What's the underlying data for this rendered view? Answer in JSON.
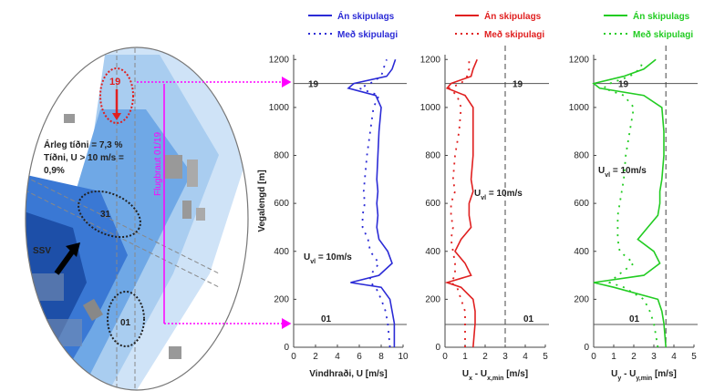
{
  "map": {
    "labels": {
      "runway_end_north": "19",
      "freq1": "Árleg tíðni = 7,3 %",
      "freq2": "Tíðni, U > 10 m/s =",
      "freq3": "0,9%",
      "runway_31": "31",
      "runway_name": "Flugbraut 01/19",
      "wind_dir": "SSV",
      "runway_end_south": "01"
    }
  },
  "chart_data": [
    {
      "type": "line",
      "distance": [
        0,
        100,
        150,
        200,
        250,
        270,
        300,
        350,
        400,
        450,
        500,
        550,
        600,
        650,
        700,
        800,
        900,
        1000,
        1050,
        1080,
        1100,
        1130,
        1160,
        1200
      ],
      "series": [
        {
          "name": "Án skipulags",
          "color": "#2b2bd6",
          "style": "solid",
          "values": [
            9.2,
            9.2,
            9.0,
            8.8,
            8.0,
            5.2,
            7.8,
            9.0,
            8.6,
            7.8,
            7.6,
            7.7,
            7.6,
            7.7,
            7.6,
            7.7,
            7.8,
            8.0,
            7.5,
            5.0,
            5.5,
            8.5,
            9.0,
            9.3
          ]
        },
        {
          "name": "Með skipulagi",
          "color": "#2b2bd6",
          "style": "dotted",
          "values": [
            8.8,
            8.6,
            8.4,
            8.0,
            7.5,
            7.0,
            7.0,
            7.8,
            7.0,
            6.8,
            6.3,
            6.3,
            6.5,
            6.4,
            6.5,
            6.7,
            7.0,
            7.3,
            7.8,
            6.0,
            7.0,
            8.0,
            8.2,
            8.5
          ]
        }
      ],
      "xlim": [
        0,
        10
      ],
      "xticks": [
        0,
        2,
        4,
        6,
        8,
        10
      ],
      "ylim": [
        0,
        1220
      ],
      "yticks": [
        0,
        200,
        400,
        600,
        800,
        1000,
        1200
      ],
      "ylabel": "Vegalengd [m]",
      "xlabel": [
        {
          "text": "Vindhraði, U [m/s]"
        }
      ],
      "hlines": [
        {
          "value": 1100,
          "label": "19"
        },
        {
          "value": 95,
          "label": "01"
        }
      ],
      "annotation": [
        {
          "text": "U"
        },
        {
          "text": "vl",
          "sub": true
        },
        {
          "text": " = 10m/s"
        }
      ]
    },
    {
      "type": "line",
      "distance": [
        0,
        100,
        150,
        200,
        250,
        270,
        300,
        350,
        400,
        450,
        500,
        550,
        600,
        650,
        700,
        800,
        900,
        1000,
        1050,
        1080,
        1100,
        1130,
        1160,
        1200
      ],
      "series": [
        {
          "name": "Án skipulags",
          "color": "#e02020",
          "style": "solid",
          "values": [
            1.4,
            1.5,
            1.5,
            1.4,
            0.8,
            0.1,
            1.3,
            1.0,
            0.5,
            0.8,
            1.3,
            1.2,
            1.2,
            1.4,
            1.3,
            1.4,
            1.4,
            1.4,
            1.0,
            0.1,
            0.3,
            1.3,
            1.4,
            1.6
          ]
        },
        {
          "name": "Með skipulagi",
          "color": "#e02020",
          "style": "dotted",
          "values": [
            1.0,
            1.0,
            1.0,
            0.8,
            0.6,
            0.3,
            0.5,
            0.5,
            0.4,
            0.3,
            0.4,
            0.3,
            0.3,
            0.5,
            0.4,
            0.5,
            0.7,
            0.8,
            0.6,
            0.2,
            0.8,
            1.1,
            1.2,
            1.2
          ]
        }
      ],
      "xlim": [
        0,
        5
      ],
      "xticks": [
        0,
        1,
        2,
        3,
        4,
        5
      ],
      "ylim": [
        0,
        1220
      ],
      "yticks": [
        0,
        200,
        400,
        600,
        800,
        1000,
        1200
      ],
      "xlabel": [
        {
          "text": "U"
        },
        {
          "text": "x",
          "sub": true
        },
        {
          "text": " - U"
        },
        {
          "text": "x,min",
          "sub": true
        },
        {
          "text": " [m/s]"
        }
      ],
      "hlines": [
        {
          "value": 1100,
          "label": "19"
        },
        {
          "value": 95,
          "label": "01"
        }
      ],
      "vline": 3,
      "annotation": [
        {
          "text": "U"
        },
        {
          "text": "vl",
          "sub": true
        },
        {
          "text": " = 10m/s"
        }
      ]
    },
    {
      "type": "line",
      "distance": [
        0,
        100,
        150,
        200,
        250,
        270,
        300,
        350,
        400,
        450,
        500,
        550,
        600,
        650,
        700,
        800,
        900,
        1000,
        1050,
        1080,
        1100,
        1130,
        1160,
        1200
      ],
      "series": [
        {
          "name": "Án skipulags",
          "color": "#22cc22",
          "style": "solid",
          "values": [
            3.6,
            3.5,
            3.4,
            3.2,
            1.0,
            0.0,
            2.5,
            3.3,
            3.0,
            2.2,
            2.7,
            3.2,
            3.3,
            3.3,
            3.4,
            3.5,
            3.5,
            3.4,
            2.5,
            0.3,
            0.0,
            1.5,
            2.5,
            3.1
          ]
        },
        {
          "name": "Með skipulagi",
          "color": "#22cc22",
          "style": "dotted",
          "values": [
            3.2,
            3.0,
            2.8,
            2.5,
            1.5,
            0.8,
            1.2,
            2.0,
            1.3,
            1.2,
            1.2,
            1.2,
            1.3,
            1.4,
            1.5,
            1.6,
            1.8,
            2.0,
            1.5,
            0.5,
            0.8,
            1.8,
            2.3,
            2.5
          ]
        }
      ],
      "xlim": [
        0,
        5
      ],
      "xticks": [
        0,
        1,
        2,
        3,
        4,
        5
      ],
      "ylim": [
        0,
        1220
      ],
      "yticks": [
        0,
        200,
        400,
        600,
        800,
        1000,
        1200
      ],
      "xlabel": [
        {
          "text": "U"
        },
        {
          "text": "y",
          "sub": true
        },
        {
          "text": " - U"
        },
        {
          "text": "y,min",
          "sub": true
        },
        {
          "text": " [m/s]"
        }
      ],
      "hlines": [
        {
          "value": 1100,
          "label": "19"
        },
        {
          "value": 95,
          "label": "01"
        }
      ],
      "vline": 3.6,
      "annotation": [
        {
          "text": "U"
        },
        {
          "text": "vl",
          "sub": true
        },
        {
          "text": " = 10m/s"
        }
      ]
    }
  ]
}
